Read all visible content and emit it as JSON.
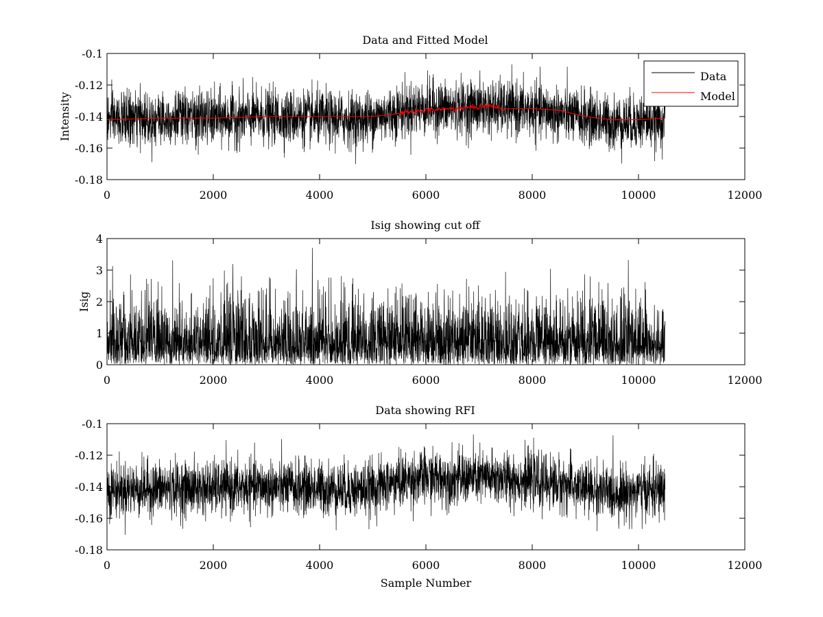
{
  "chart_data": [
    {
      "type": "line",
      "title": "Data and Fitted Model",
      "xlabel": "",
      "ylabel": "Intensity",
      "xlim": [
        0,
        12000
      ],
      "ylim": [
        -0.18,
        -0.1
      ],
      "xticks": [
        0,
        2000,
        4000,
        6000,
        8000,
        10000,
        12000
      ],
      "xtick_labels": [
        "0",
        "2000",
        "4000",
        "6000",
        "8000",
        "10000",
        "12000"
      ],
      "yticks": [
        -0.18,
        -0.16,
        -0.14,
        -0.12,
        -0.1
      ],
      "ytick_labels": [
        "-0.18",
        "-0.16",
        "-0.14",
        "-0.12",
        "-0.1"
      ],
      "grid": false,
      "legend": {
        "placement": "top-right",
        "entries": [
          {
            "name": "Data",
            "color": "#000000"
          },
          {
            "name": "Model",
            "color": "#ff0000"
          }
        ]
      },
      "series": [
        {
          "name": "Data",
          "color": "#000000",
          "x_range": [
            0,
            10500
          ],
          "baseline": {
            "x": [
              0,
              1000,
              2000,
              3000,
              4000,
              4800,
              5200,
              5600,
              6000,
              6500,
              7000,
              7500,
              8000,
              8500,
              9000,
              9500,
              10000,
              10500
            ],
            "y": [
              -0.142,
              -0.141,
              -0.141,
              -0.14,
              -0.141,
              -0.142,
              -0.139,
              -0.136,
              -0.134,
              -0.135,
              -0.134,
              -0.135,
              -0.136,
              -0.138,
              -0.141,
              -0.144,
              -0.143,
              -0.142
            ]
          },
          "noise_sd": 0.0085,
          "y_extent": [
            -0.171,
            -0.107
          ]
        },
        {
          "name": "Model",
          "color": "#ff0000",
          "x": [
            0,
            1000,
            2000,
            3000,
            4000,
            5000,
            5500,
            6000,
            6500,
            7000,
            7200,
            7400,
            8000,
            8500,
            9000,
            9500,
            10000,
            10500
          ],
          "y": [
            -0.142,
            -0.141,
            -0.141,
            -0.14,
            -0.14,
            -0.14,
            -0.138,
            -0.136,
            -0.135,
            -0.134,
            -0.133,
            -0.135,
            -0.135,
            -0.136,
            -0.14,
            -0.142,
            -0.142,
            -0.141
          ]
        }
      ]
    },
    {
      "type": "line",
      "title": "Isig showing cut off",
      "xlabel": "",
      "ylabel": "Isig",
      "xlim": [
        0,
        12000
      ],
      "ylim": [
        0,
        4
      ],
      "xticks": [
        0,
        2000,
        4000,
        6000,
        8000,
        10000,
        12000
      ],
      "xtick_labels": [
        "0",
        "2000",
        "4000",
        "6000",
        "8000",
        "10000",
        "12000"
      ],
      "yticks": [
        0,
        1,
        2,
        3,
        4
      ],
      "ytick_labels": [
        "0",
        "1",
        "2",
        "3",
        "4"
      ],
      "grid": false,
      "series": [
        {
          "color": "#000000",
          "x_range": [
            0,
            10500
          ],
          "distribution": "magnitude of gaussian noise",
          "mean": 0.8,
          "y_extent": [
            0,
            3.7
          ]
        }
      ]
    },
    {
      "type": "line",
      "title": "Data showing RFI",
      "xlabel": "Sample Number",
      "ylabel": "",
      "xlim": [
        0,
        12000
      ],
      "ylim": [
        -0.18,
        -0.1
      ],
      "xticks": [
        0,
        2000,
        4000,
        6000,
        8000,
        10000,
        12000
      ],
      "xtick_labels": [
        "0",
        "2000",
        "4000",
        "6000",
        "8000",
        "10000",
        "12000"
      ],
      "yticks": [
        -0.18,
        -0.16,
        -0.14,
        -0.12,
        -0.1
      ],
      "ytick_labels": [
        "-0.18",
        "-0.16",
        "-0.14",
        "-0.12",
        "-0.1"
      ],
      "grid": false,
      "series": [
        {
          "color": "#000000",
          "x_range": [
            0,
            10500
          ],
          "baseline": {
            "x": [
              0,
              1000,
              2000,
              3000,
              4000,
              4800,
              5200,
              5600,
              6000,
              6500,
              7000,
              7500,
              8000,
              8500,
              9000,
              9500,
              10000,
              10500
            ],
            "y": [
              -0.142,
              -0.141,
              -0.141,
              -0.14,
              -0.141,
              -0.142,
              -0.139,
              -0.136,
              -0.134,
              -0.135,
              -0.134,
              -0.135,
              -0.136,
              -0.138,
              -0.141,
              -0.144,
              -0.143,
              -0.142
            ]
          },
          "noise_sd": 0.0085,
          "y_extent": [
            -0.171,
            -0.107
          ]
        }
      ]
    }
  ]
}
